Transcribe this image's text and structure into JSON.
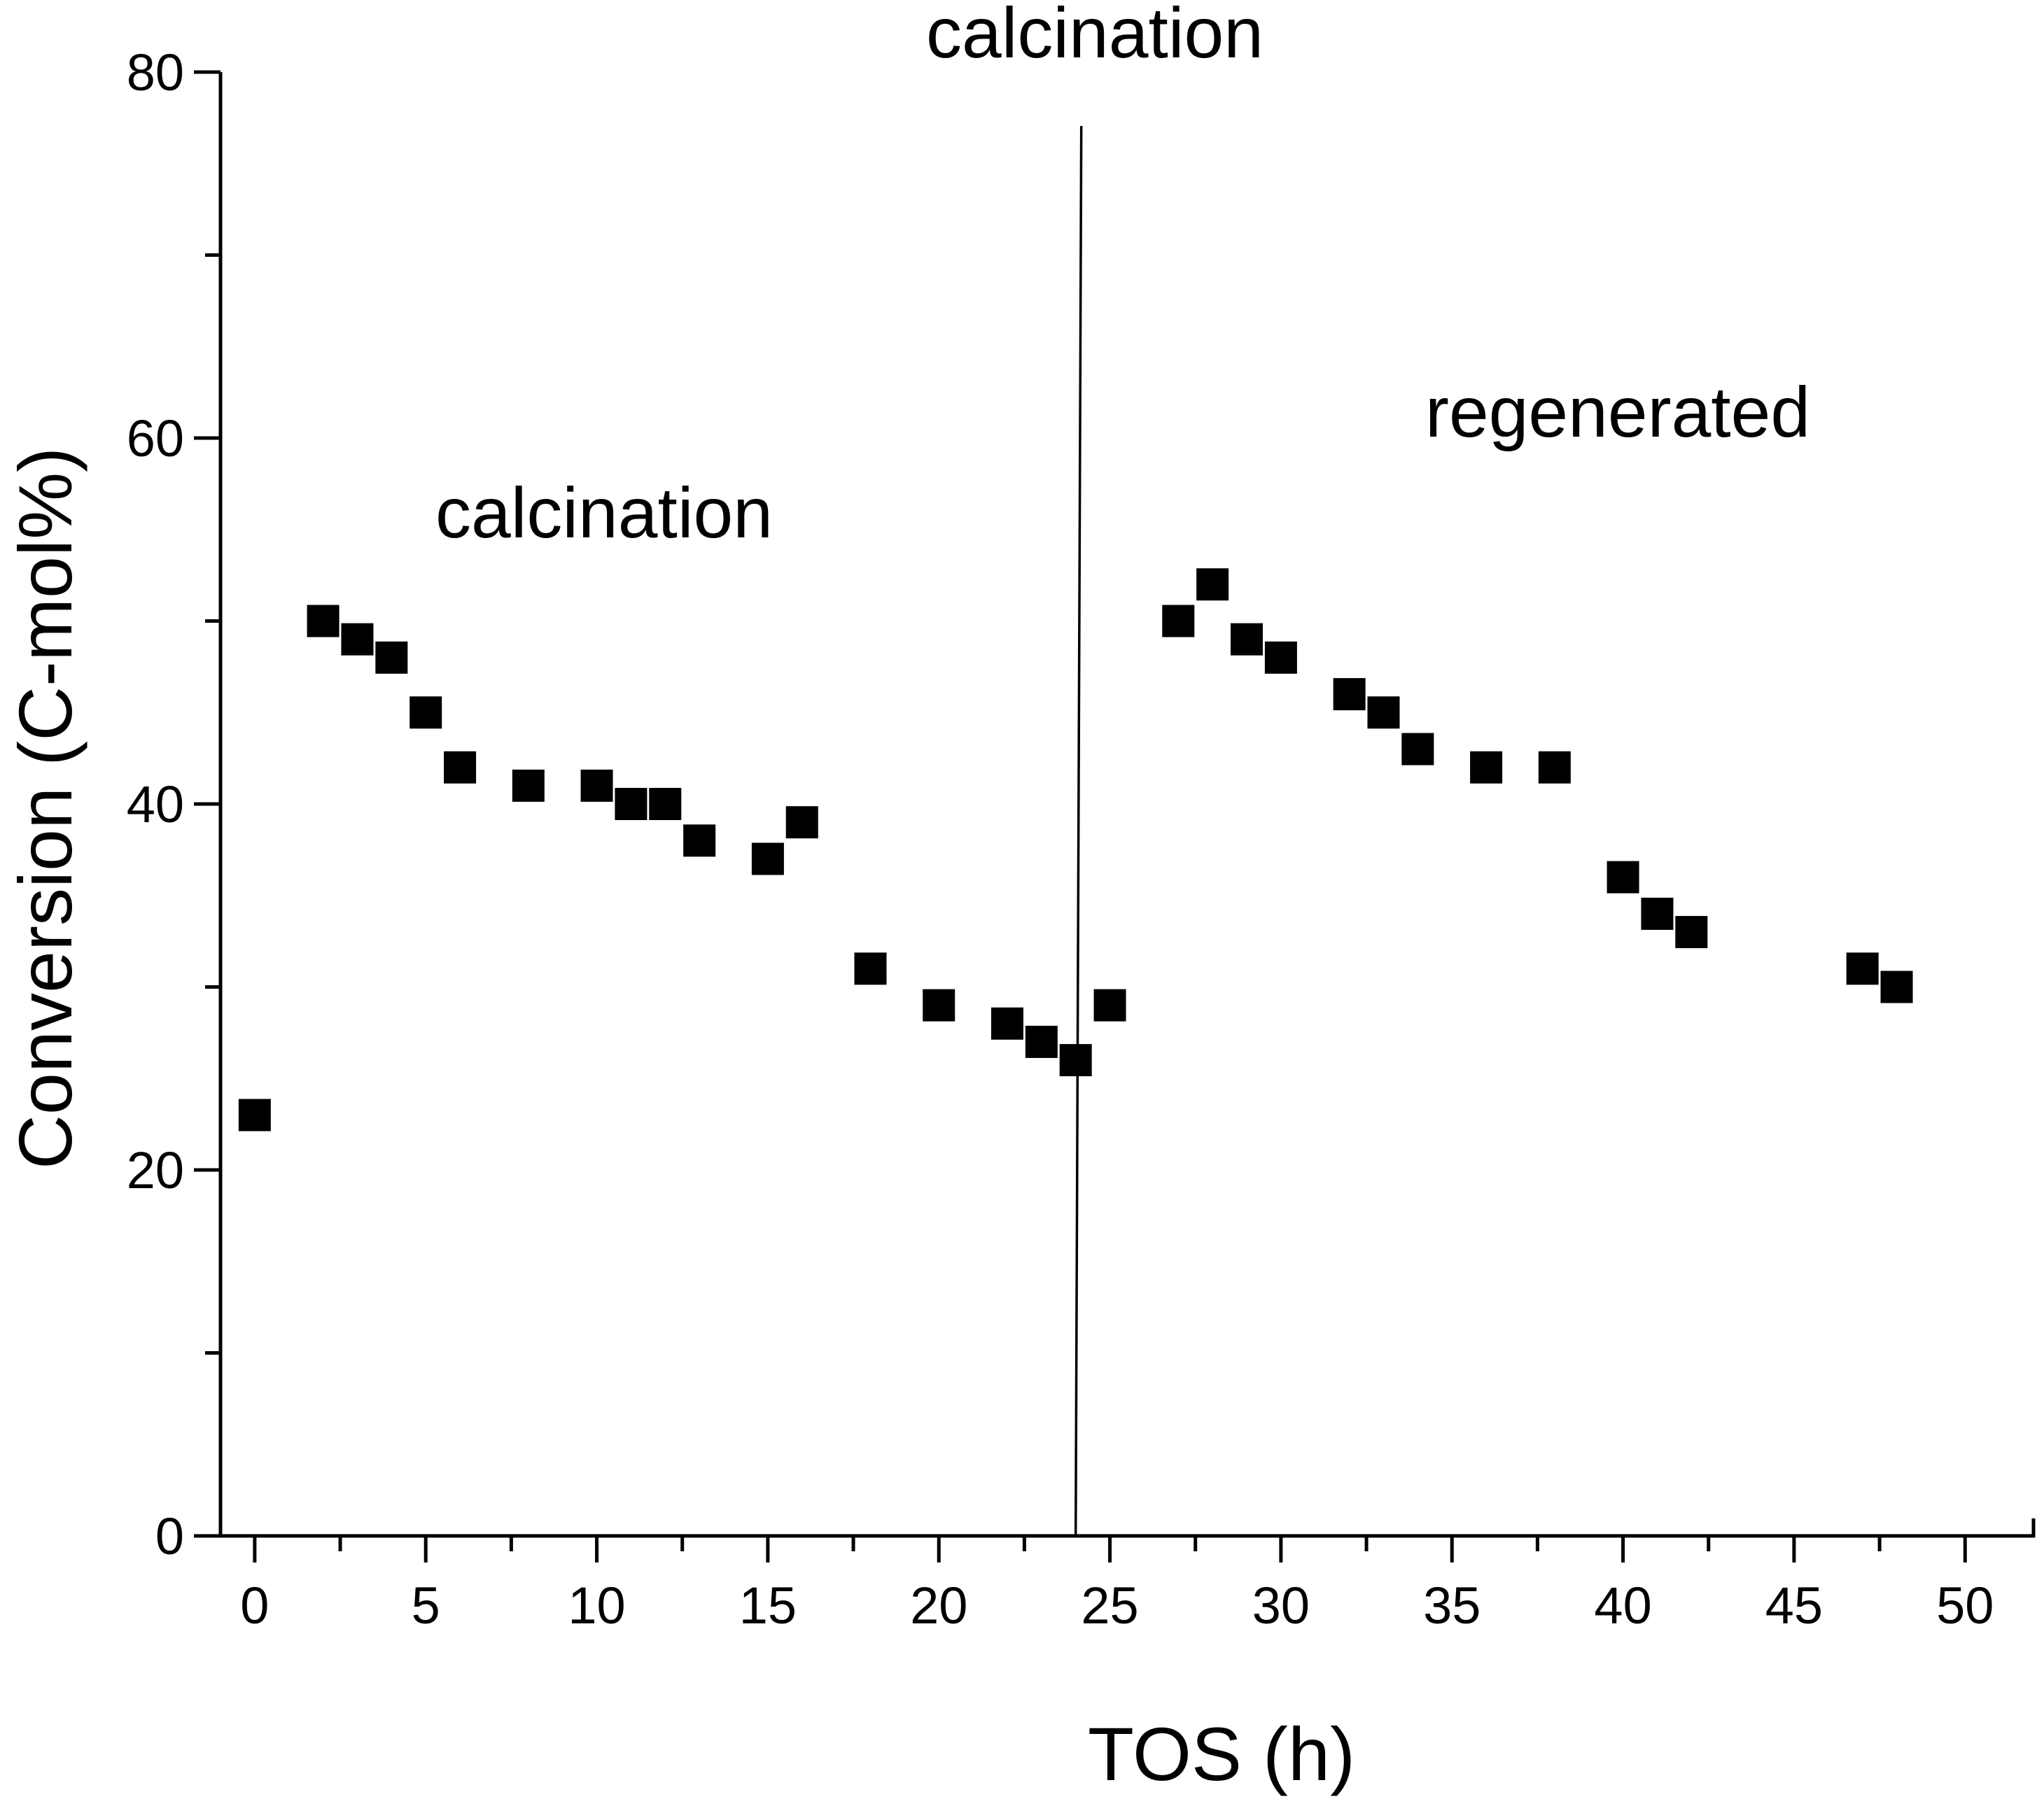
{
  "chart_data": {
    "type": "scatter",
    "title": "",
    "xlabel": "TOS (h)",
    "ylabel": "Conversion (C-mol%)",
    "xlim": [
      -1,
      52
    ],
    "ylim": [
      0,
      80
    ],
    "x_ticks": [
      "0",
      "5",
      "10",
      "15",
      "20",
      "25",
      "30",
      "35",
      "40",
      "45",
      "50"
    ],
    "y_ticks": [
      "0",
      "20",
      "40",
      "60",
      "80"
    ],
    "marker": "square",
    "color": "#000000",
    "series": [
      {
        "name": "Conversion",
        "x": [
          0,
          2,
          3,
          4,
          5,
          6,
          8,
          10,
          11,
          12,
          13,
          15,
          16,
          18,
          20,
          22,
          23,
          24,
          25,
          27,
          28,
          29,
          30,
          32,
          33,
          34,
          36,
          38,
          40,
          41,
          42,
          47,
          48
        ],
        "y": [
          23,
          50,
          49,
          48,
          45,
          42,
          41,
          41,
          40,
          40,
          38,
          37,
          39,
          31,
          29,
          28,
          27,
          26,
          29,
          50,
          52,
          49,
          48,
          46,
          45,
          43,
          42,
          42,
          36,
          34,
          33,
          31,
          30
        ]
      }
    ],
    "divider_x": 24,
    "annotations": [
      {
        "id": "top-calcination",
        "text": "calcination"
      },
      {
        "id": "left-calcination",
        "text": "calcination"
      },
      {
        "id": "right-regenerated",
        "text": "regenerated"
      }
    ]
  }
}
